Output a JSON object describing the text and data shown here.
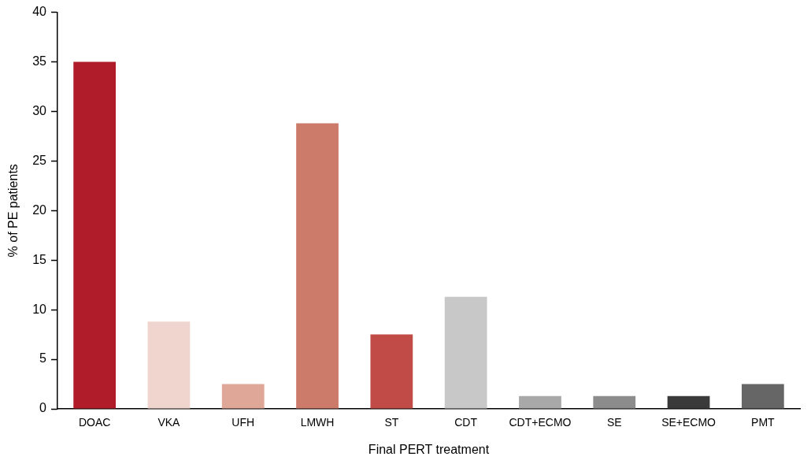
{
  "chart_data": {
    "type": "bar",
    "xlabel": "Final PERT treatment",
    "ylabel": "% of PE patients",
    "categories": [
      "DOAC",
      "VKA",
      "UFH",
      "LMWH",
      "ST",
      "CDT",
      "CDT+ECMO",
      "SE",
      "SE+ECMO",
      "PMT"
    ],
    "values": [
      35,
      8.8,
      2.5,
      28.8,
      7.5,
      11.3,
      1.3,
      1.3,
      1.3,
      2.5
    ],
    "colors": [
      "#b01c2a",
      "#f0d5cf",
      "#dfa797",
      "#cc7a6a",
      "#c04b47",
      "#c8c8c8",
      "#a8a8a8",
      "#8c8c8c",
      "#3a3a3a",
      "#666666"
    ],
    "ylim": [
      0,
      40
    ],
    "yticks": [
      0,
      5,
      10,
      15,
      20,
      25,
      30,
      35,
      40
    ],
    "grid": false,
    "legend": false
  }
}
